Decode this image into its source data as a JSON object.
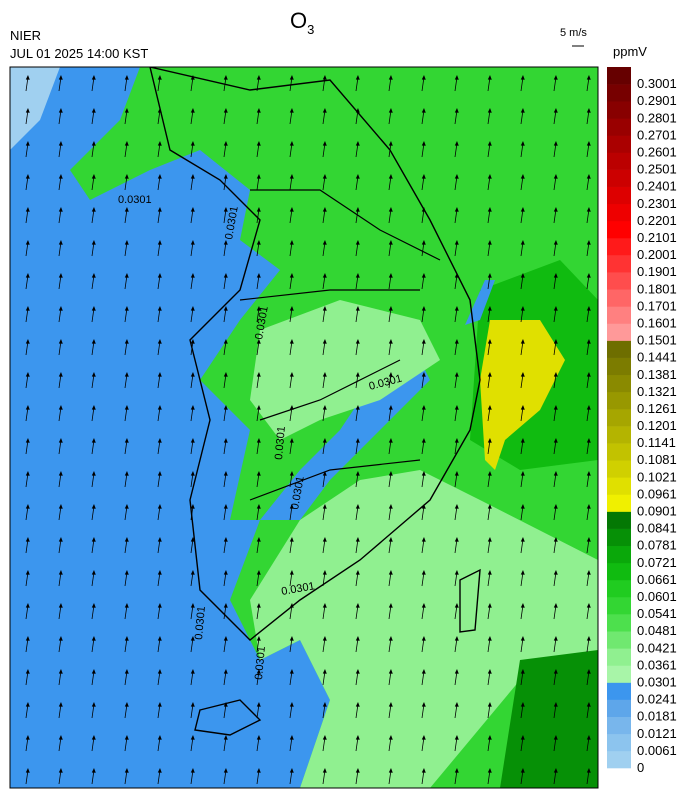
{
  "header": {
    "title": {
      "base": "O",
      "subscript": "3"
    },
    "agency": "NIER",
    "timestamp": "JUL 01 2025 14:00 KST",
    "wind_scale": "5 m/s"
  },
  "colorbar": {
    "unit": "ppmV",
    "labels": [
      "0",
      "0.0061",
      "0.0121",
      "0.0181",
      "0.0241",
      "0.0301",
      "0.0361",
      "0.0421",
      "0.0481",
      "0.0541",
      "0.0601",
      "0.0661",
      "0.0721",
      "0.0781",
      "0.0841",
      "0.0901",
      "0.0961",
      "0.1021",
      "0.1081",
      "0.1141",
      "0.1201",
      "0.1261",
      "0.1321",
      "0.1381",
      "0.1441",
      "0.1501",
      "0.1601",
      "0.1701",
      "0.1801",
      "0.1901",
      "0.2001",
      "0.2101",
      "0.2201",
      "0.2301",
      "0.2401",
      "0.2501",
      "0.2601",
      "0.2701",
      "0.2801",
      "0.2901",
      "0.3001"
    ],
    "colors": [
      "#a0d0f0",
      "#8cc4ee",
      "#78b6ec",
      "#5ea6ea",
      "#3c96ee",
      "#a8f5a8",
      "#90f090",
      "#70e870",
      "#4de04d",
      "#33d633",
      "#20cc20",
      "#10bb10",
      "#0aa80a",
      "#069006",
      "#047804",
      "#f0f000",
      "#e0e000",
      "#d0d000",
      "#c2c200",
      "#b4b400",
      "#a6a600",
      "#989800",
      "#8a8a00",
      "#7c7c00",
      "#6e6e00",
      "#ff9999",
      "#ff8080",
      "#ff6666",
      "#ff4d4d",
      "#ff3333",
      "#ff1a1a",
      "#ff0000",
      "#ee0000",
      "#dd0000",
      "#cc0000",
      "#bb0000",
      "#aa0000",
      "#990000",
      "#880000",
      "#770000",
      "#660000"
    ]
  },
  "map": {
    "contour_labels": [
      "0.0301",
      "0.0301",
      "0.0301",
      "0.0301",
      "0.0301",
      "0.0301",
      "0.0301",
      "0.0301",
      "0.0301"
    ]
  }
}
